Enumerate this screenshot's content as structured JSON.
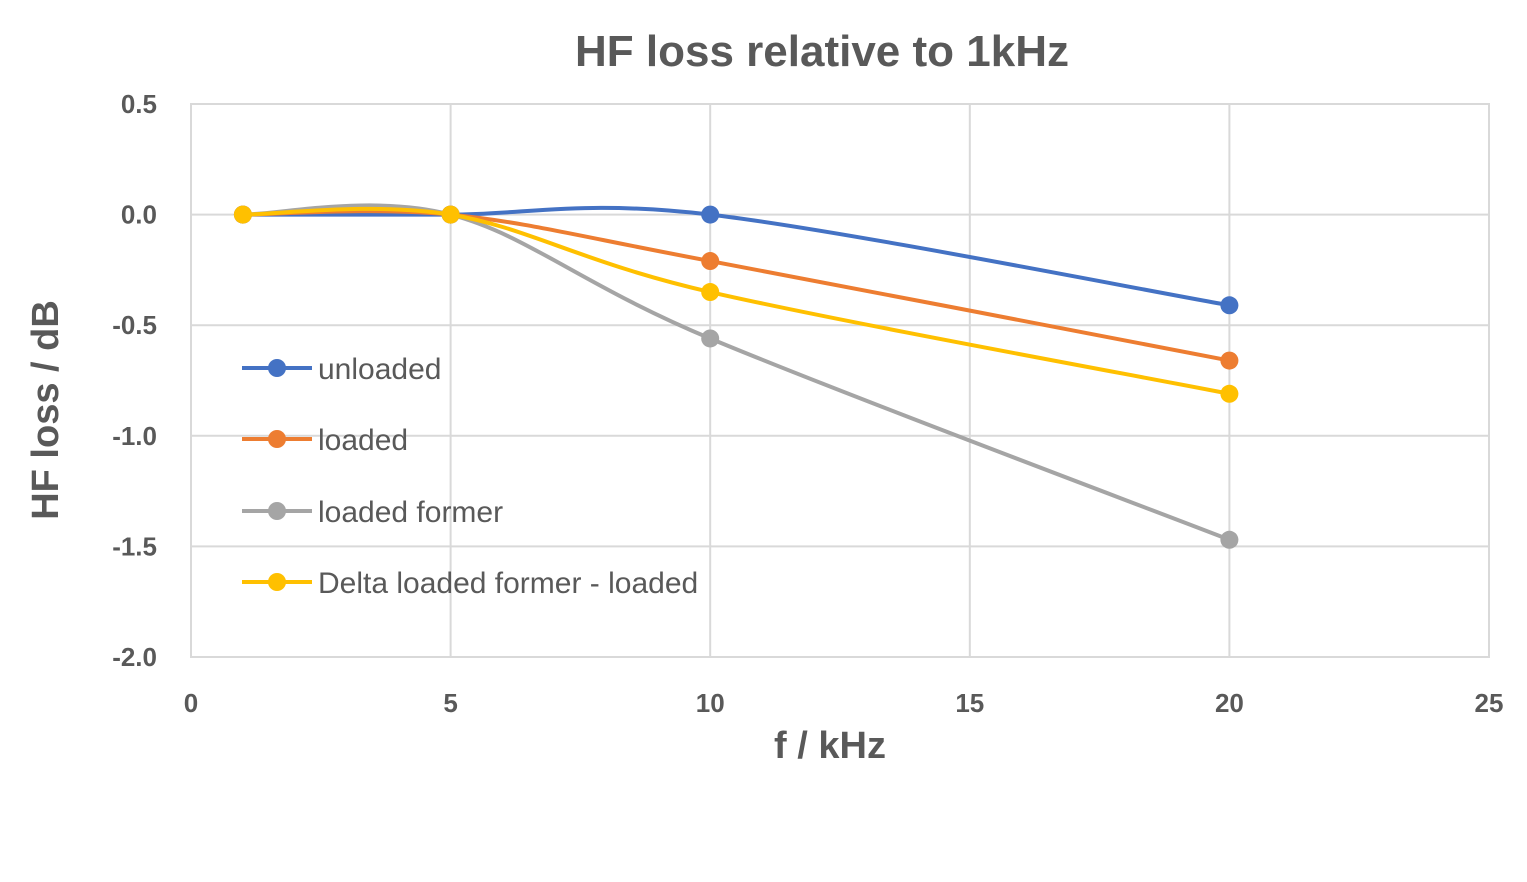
{
  "chart_data": {
    "type": "line",
    "title": "HF loss relative to 1kHz",
    "xlabel": "f / kHz",
    "ylabel": "HF loss  / dB",
    "xlim": [
      0,
      25
    ],
    "ylim": [
      -2.0,
      0.5
    ],
    "xticks": [
      0,
      5,
      10,
      15,
      20,
      25
    ],
    "xtick_labels": [
      "0",
      "5",
      "10",
      "15",
      "20",
      "25"
    ],
    "yticks": [
      0.5,
      0.0,
      -0.5,
      -1.0,
      -1.5,
      -2.0
    ],
    "ytick_labels": [
      "0.5",
      "0.0",
      "-0.5",
      "-1.0",
      "-1.5",
      "-2.0"
    ],
    "grid": true,
    "smooth": true,
    "legend_position": "inside-left",
    "series": [
      {
        "name": "unloaded",
        "color": "#4472C4",
        "x": [
          1,
          5,
          10,
          20
        ],
        "y": [
          0.0,
          0.0,
          0.0,
          -0.41
        ]
      },
      {
        "name": "loaded",
        "color": "#ED7D31",
        "x": [
          1,
          5,
          10,
          20
        ],
        "y": [
          0.0,
          0.0,
          -0.21,
          -0.66
        ]
      },
      {
        "name": "loaded former",
        "color": "#A5A5A5",
        "x": [
          1,
          5,
          10,
          20
        ],
        "y": [
          0.0,
          0.0,
          -0.56,
          -1.47
        ]
      },
      {
        "name": "Delta loaded former - loaded",
        "color": "#FFC000",
        "x": [
          1,
          5,
          10,
          20
        ],
        "y": [
          0.0,
          0.0,
          -0.35,
          -0.81
        ]
      }
    ]
  }
}
